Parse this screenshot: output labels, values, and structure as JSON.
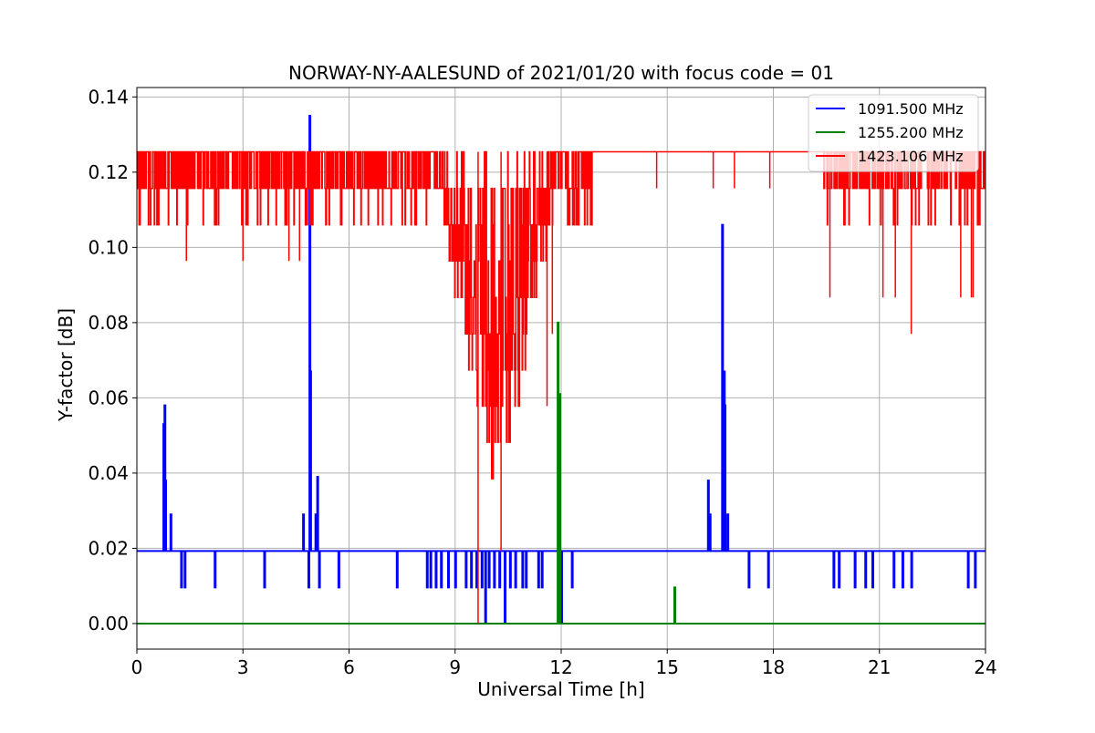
{
  "chart_data": {
    "type": "line",
    "title": "NORWAY-NY-AALESUND of 2021/01/20 with focus code = 01",
    "xlabel": "Universal Time [h]",
    "ylabel": "Y-factor [dB]",
    "xlim": [
      0,
      24
    ],
    "ylim": [
      -0.0068,
      0.1425
    ],
    "xticks": [
      0,
      3,
      6,
      9,
      12,
      15,
      18,
      21,
      24
    ],
    "xtick_labels": [
      "0",
      "3",
      "6",
      "9",
      "12",
      "15",
      "18",
      "21",
      "24"
    ],
    "yticks": [
      0.0,
      0.02,
      0.04,
      0.06,
      0.08,
      0.1,
      0.12,
      0.14
    ],
    "ytick_labels": [
      "0.00",
      "0.02",
      "0.04",
      "0.06",
      "0.08",
      "0.10",
      "0.12",
      "0.14"
    ],
    "grid": true,
    "legend_position": "top-right",
    "series": [
      {
        "name": "1091.500 MHz",
        "color": "#0000ff",
        "baseline": 0.0193,
        "spikes": [
          [
            0.75,
            0.053
          ],
          [
            0.78,
            0.058
          ],
          [
            0.8,
            0.038
          ],
          [
            0.95,
            0.029
          ],
          [
            1.25,
            0.0096
          ],
          [
            1.35,
            0.0096
          ],
          [
            2.2,
            0.0096
          ],
          [
            3.6,
            0.0096
          ],
          [
            4.7,
            0.029
          ],
          [
            4.85,
            0.0096
          ],
          [
            4.88,
            0.135
          ],
          [
            4.9,
            0.067
          ],
          [
            5.05,
            0.029
          ],
          [
            5.1,
            0.039
          ],
          [
            5.15,
            0.0096
          ],
          [
            5.7,
            0.0096
          ],
          [
            7.35,
            0.0096
          ],
          [
            8.2,
            0.0096
          ],
          [
            8.3,
            0.0096
          ],
          [
            8.45,
            0.0096
          ],
          [
            8.6,
            0.0096
          ],
          [
            8.8,
            0.0096
          ],
          [
            9.0,
            0.0096
          ],
          [
            9.3,
            0.0096
          ],
          [
            9.45,
            0.0096
          ],
          [
            9.6,
            0.0096
          ],
          [
            9.75,
            0.0096
          ],
          [
            9.85,
            0.0
          ],
          [
            9.95,
            0.0096
          ],
          [
            10.1,
            0.0096
          ],
          [
            10.25,
            0.0096
          ],
          [
            10.4,
            0.0
          ],
          [
            10.55,
            0.0096
          ],
          [
            10.7,
            0.0096
          ],
          [
            10.9,
            0.0096
          ],
          [
            11.0,
            0.0096
          ],
          [
            11.35,
            0.0096
          ],
          [
            11.45,
            0.0096
          ],
          [
            12.0,
            0.0
          ],
          [
            12.3,
            0.0096
          ],
          [
            16.15,
            0.038
          ],
          [
            16.2,
            0.029
          ],
          [
            16.55,
            0.106
          ],
          [
            16.6,
            0.067
          ],
          [
            16.62,
            0.058
          ],
          [
            16.7,
            0.029
          ],
          [
            17.3,
            0.0096
          ],
          [
            17.85,
            0.0096
          ],
          [
            19.7,
            0.0096
          ],
          [
            19.85,
            0.0096
          ],
          [
            20.3,
            0.0096
          ],
          [
            20.6,
            0.0096
          ],
          [
            20.8,
            0.0096
          ],
          [
            21.4,
            0.0096
          ],
          [
            21.65,
            0.0096
          ],
          [
            21.9,
            0.0096
          ],
          [
            23.5,
            0.0096
          ],
          [
            23.7,
            0.0096
          ]
        ]
      },
      {
        "name": "1255.200 MHz",
        "color": "#008000",
        "baseline": 0.0,
        "spikes": [
          [
            11.9,
            0.08
          ],
          [
            11.95,
            0.061
          ],
          [
            15.2,
            0.0096
          ]
        ]
      },
      {
        "name": "1423.106 MHz",
        "color": "#ff0000",
        "baseline": 0.1254,
        "levels": [
          0.1254,
          0.1157,
          0.106,
          0.0964,
          0.0867,
          0.077,
          0.0674,
          0.0578,
          0.0482,
          0.0385,
          0.0289,
          0.0
        ],
        "band": {
          "start": 0.0,
          "end": 24.0,
          "quiet_start": 12.9,
          "quiet_end": 19.4,
          "dip_center": 10.2,
          "dip_width": 1.2,
          "dip_min": 0.0289
        },
        "spikes": [
          [
            1.4,
            0.0964
          ],
          [
            3.0,
            0.0964
          ],
          [
            4.3,
            0.0964
          ],
          [
            4.6,
            0.0964
          ],
          [
            9.65,
            0.0
          ],
          [
            10.3,
            0.0193
          ],
          [
            11.6,
            0.0578
          ],
          [
            11.75,
            0.077
          ],
          [
            14.7,
            0.1157
          ],
          [
            16.3,
            0.1157
          ],
          [
            16.9,
            0.1157
          ],
          [
            17.9,
            0.1157
          ],
          [
            19.6,
            0.0867
          ],
          [
            21.1,
            0.0867
          ],
          [
            21.45,
            0.0867
          ],
          [
            21.9,
            0.077
          ],
          [
            23.3,
            0.0867
          ],
          [
            23.6,
            0.0867
          ],
          [
            23.65,
            0.0867
          ]
        ]
      }
    ]
  }
}
